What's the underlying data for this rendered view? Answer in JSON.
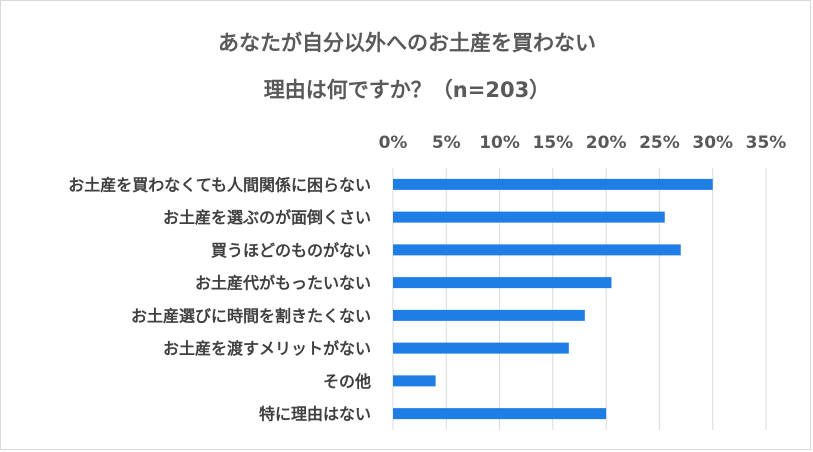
{
  "chart_data": {
    "type": "bar",
    "orientation": "horizontal",
    "title": "あなたが自分以外へのお土産を買わない",
    "subtitle": "理由は何ですか？（n=203）",
    "categories": [
      "お土産を買わなくても人間関係に困らない",
      "お土産を選ぶのが面倒くさい",
      "買うほどのものがない",
      "お土産代がもったいない",
      "お土産選びに時間を割きたくない",
      "お土産を渡すメリットがない",
      "その他",
      "特に理由はない"
    ],
    "values": [
      30,
      25.5,
      27,
      20.5,
      18,
      16.5,
      4,
      20
    ],
    "x_ticks": [
      "0%",
      "5%",
      "10%",
      "15%",
      "20%",
      "25%",
      "30%",
      "35%"
    ],
    "xlim": [
      0,
      35
    ],
    "x_axis_position": "top",
    "grid": true,
    "bar_color": "#1f7ee6",
    "grid_color": "#d9d9d9"
  }
}
